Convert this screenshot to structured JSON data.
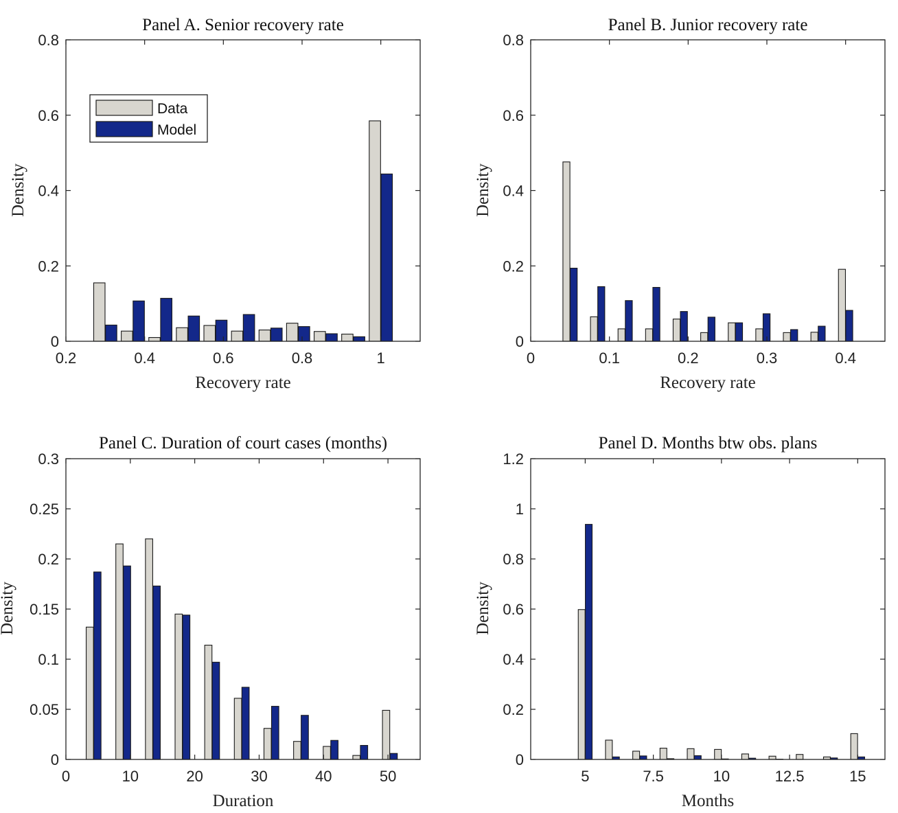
{
  "colors": {
    "data": "#d8d6cf",
    "model": "#13288a",
    "edge": "#1a1a1a",
    "axis": "#222222"
  },
  "legend": {
    "data_label": "Data",
    "model_label": "Model",
    "placement": "top-left"
  },
  "chart_data": [
    {
      "id": "A",
      "type": "bar",
      "title": "Panel A. Senior recovery rate",
      "xlabel": "Recovery rate",
      "ylabel": "Density",
      "xlim": [
        0.2,
        1.1
      ],
      "ylim": [
        0,
        0.8
      ],
      "xticks": [
        0.2,
        0.4,
        0.6,
        0.8,
        1
      ],
      "xtick_labels": [
        "0.2",
        "0.4",
        "0.6",
        "0.8",
        "1"
      ],
      "yticks": [
        0,
        0.2,
        0.4,
        0.6,
        0.8
      ],
      "ytick_labels": [
        "0",
        "0.2",
        "0.4",
        "0.6",
        "0.8"
      ],
      "bin_width": 0.06,
      "x": [
        0.3,
        0.37,
        0.44,
        0.51,
        0.58,
        0.65,
        0.72,
        0.79,
        0.86,
        0.93,
        1.0
      ],
      "series": [
        {
          "name": "Data",
          "values": [
            0.155,
            0.027,
            0.01,
            0.036,
            0.042,
            0.027,
            0.03,
            0.048,
            0.026,
            0.019,
            0.585
          ]
        },
        {
          "name": "Model",
          "values": [
            0.043,
            0.107,
            0.114,
            0.067,
            0.056,
            0.071,
            0.035,
            0.039,
            0.02,
            0.012,
            0.444
          ]
        }
      ]
    },
    {
      "id": "B",
      "type": "bar",
      "title": "Panel B. Junior recovery rate",
      "xlabel": "Recovery rate",
      "ylabel": "Density",
      "xlim": [
        0,
        0.45
      ],
      "ylim": [
        0,
        0.8
      ],
      "xticks": [
        0,
        0.1,
        0.2,
        0.3,
        0.4
      ],
      "xtick_labels": [
        "0",
        "0.1",
        "0.2",
        "0.3",
        "0.4"
      ],
      "yticks": [
        0,
        0.2,
        0.4,
        0.6,
        0.8
      ],
      "ytick_labels": [
        "0",
        "0.2",
        "0.4",
        "0.6",
        "0.8"
      ],
      "bin_width": 0.0185,
      "x": [
        0.05,
        0.085,
        0.12,
        0.155,
        0.19,
        0.225,
        0.26,
        0.295,
        0.33,
        0.365,
        0.4
      ],
      "series": [
        {
          "name": "Data",
          "values": [
            0.476,
            0.065,
            0.033,
            0.033,
            0.059,
            0.023,
            0.049,
            0.033,
            0.023,
            0.024,
            0.191
          ]
        },
        {
          "name": "Model",
          "values": [
            0.194,
            0.145,
            0.108,
            0.143,
            0.079,
            0.064,
            0.049,
            0.073,
            0.031,
            0.04,
            0.082
          ]
        }
      ]
    },
    {
      "id": "C",
      "type": "bar",
      "title": "Panel C. Duration of court cases (months)",
      "xlabel": "Duration",
      "ylabel": "Density",
      "xlim": [
        0,
        55
      ],
      "ylim": [
        0,
        0.3
      ],
      "xticks": [
        0,
        10,
        20,
        30,
        40,
        50
      ],
      "xtick_labels": [
        "0",
        "10",
        "20",
        "30",
        "40",
        "50"
      ],
      "yticks": [
        0,
        0.05,
        0.1,
        0.15,
        0.2,
        0.25,
        0.3
      ],
      "ytick_labels": [
        "0",
        "0.05",
        "0.1",
        "0.15",
        "0.2",
        "0.25",
        "0.3"
      ],
      "bin_width": 2.35,
      "x": [
        4.3,
        8.9,
        13.5,
        18.1,
        22.7,
        27.3,
        31.9,
        36.5,
        41.1,
        45.7,
        50.3
      ],
      "series": [
        {
          "name": "Data",
          "values": [
            0.132,
            0.215,
            0.22,
            0.145,
            0.114,
            0.061,
            0.031,
            0.018,
            0.013,
            0.004,
            0.049
          ]
        },
        {
          "name": "Model",
          "values": [
            0.187,
            0.193,
            0.173,
            0.144,
            0.097,
            0.072,
            0.053,
            0.044,
            0.019,
            0.014,
            0.006
          ]
        }
      ]
    },
    {
      "id": "D",
      "type": "bar",
      "title": "Panel D. Months btw obs. plans",
      "xlabel": "Months",
      "ylabel": "Density",
      "xlim": [
        3,
        16
      ],
      "ylim": [
        0,
        1.2
      ],
      "xticks": [
        5,
        7.5,
        10,
        12.5,
        15
      ],
      "xtick_labels": [
        "5",
        "7.5",
        "10",
        "12.5",
        "15"
      ],
      "yticks": [
        0,
        0.2,
        0.4,
        0.6,
        0.8,
        1,
        1.2
      ],
      "ytick_labels": [
        "0",
        "0.2",
        "0.4",
        "0.6",
        "0.8",
        "1",
        "1.2"
      ],
      "bin_width": 0.52,
      "x": [
        5.0,
        6.0,
        7.0,
        8.0,
        9.0,
        10.0,
        11.0,
        12.0,
        13.0,
        14.0,
        15.0
      ],
      "series": [
        {
          "name": "Data",
          "values": [
            0.598,
            0.077,
            0.033,
            0.045,
            0.043,
            0.04,
            0.022,
            0.013,
            0.02,
            0.01,
            0.103
          ]
        },
        {
          "name": "Model",
          "values": [
            0.938,
            0.01,
            0.014,
            0.003,
            0.015,
            0.002,
            0.005,
            0.001,
            0.0,
            0.006,
            0.01
          ]
        }
      ]
    }
  ]
}
